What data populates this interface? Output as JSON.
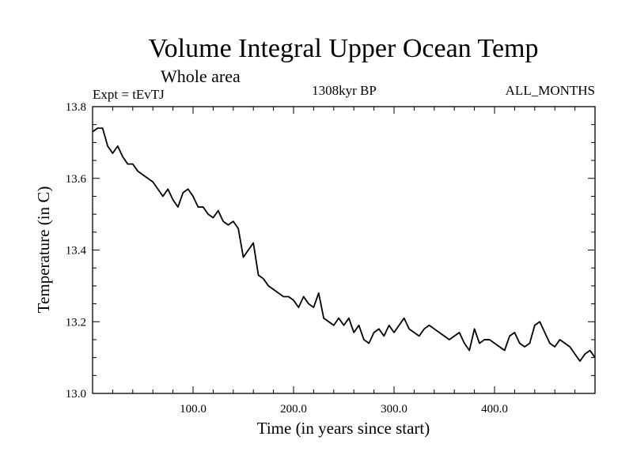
{
  "chart_data": {
    "type": "line",
    "title": "Volume Integral Upper Ocean Temp",
    "subtitle": "Whole area",
    "experiment": "Expt = tEvTJ",
    "period": "1308kyr BP",
    "months": "ALL_MONTHS",
    "xlabel": "Time (in years since start)",
    "ylabel": "Temperature (in C)",
    "xlim": [
      0,
      500
    ],
    "ylim": [
      13.0,
      13.8
    ],
    "x_tick_labels": [
      {
        "value": 100,
        "label": "100.0"
      },
      {
        "value": 200,
        "label": "200.0"
      },
      {
        "value": 300,
        "label": "300.0"
      },
      {
        "value": 400,
        "label": "400.0"
      }
    ],
    "y_tick_labels": [
      {
        "value": 13.0,
        "label": "13.0"
      },
      {
        "value": 13.2,
        "label": "13.2"
      },
      {
        "value": 13.4,
        "label": "13.4"
      },
      {
        "value": 13.6,
        "label": "13.6"
      },
      {
        "value": 13.8,
        "label": "13.8"
      }
    ],
    "x_minor_step": 20,
    "y_minor_step": 0.05,
    "series": [
      {
        "name": "Temperature",
        "color": "#000000",
        "x": [
          0,
          5,
          10,
          15,
          20,
          25,
          30,
          35,
          40,
          45,
          50,
          55,
          60,
          65,
          70,
          75,
          80,
          85,
          90,
          95,
          100,
          105,
          110,
          115,
          120,
          125,
          130,
          135,
          140,
          145,
          150,
          155,
          160,
          165,
          170,
          175,
          180,
          185,
          190,
          195,
          200,
          205,
          210,
          215,
          220,
          225,
          230,
          235,
          240,
          245,
          250,
          255,
          260,
          265,
          270,
          275,
          280,
          285,
          290,
          295,
          300,
          305,
          310,
          315,
          320,
          325,
          330,
          335,
          340,
          345,
          350,
          355,
          360,
          365,
          370,
          375,
          380,
          385,
          390,
          395,
          400,
          405,
          410,
          415,
          420,
          425,
          430,
          435,
          440,
          445,
          450,
          455,
          460,
          465,
          470,
          475,
          480,
          485,
          490,
          495,
          500
        ],
        "values": [
          13.73,
          13.74,
          13.74,
          13.69,
          13.67,
          13.69,
          13.66,
          13.64,
          13.64,
          13.62,
          13.61,
          13.6,
          13.59,
          13.57,
          13.55,
          13.57,
          13.54,
          13.52,
          13.56,
          13.57,
          13.55,
          13.52,
          13.52,
          13.5,
          13.49,
          13.51,
          13.48,
          13.47,
          13.48,
          13.46,
          13.38,
          13.4,
          13.42,
          13.33,
          13.32,
          13.3,
          13.29,
          13.28,
          13.27,
          13.27,
          13.26,
          13.24,
          13.27,
          13.25,
          13.24,
          13.28,
          13.21,
          13.2,
          13.19,
          13.21,
          13.19,
          13.21,
          13.17,
          13.19,
          13.15,
          13.14,
          13.17,
          13.18,
          13.16,
          13.19,
          13.17,
          13.19,
          13.21,
          13.18,
          13.17,
          13.16,
          13.18,
          13.19,
          13.18,
          13.17,
          13.16,
          13.15,
          13.16,
          13.17,
          13.14,
          13.12,
          13.18,
          13.14,
          13.15,
          13.15,
          13.14,
          13.13,
          13.12,
          13.16,
          13.17,
          13.14,
          13.13,
          13.14,
          13.19,
          13.2,
          13.17,
          13.14,
          13.13,
          13.15,
          13.14,
          13.13,
          13.11,
          13.09,
          13.11,
          13.12,
          13.1
        ]
      }
    ]
  }
}
